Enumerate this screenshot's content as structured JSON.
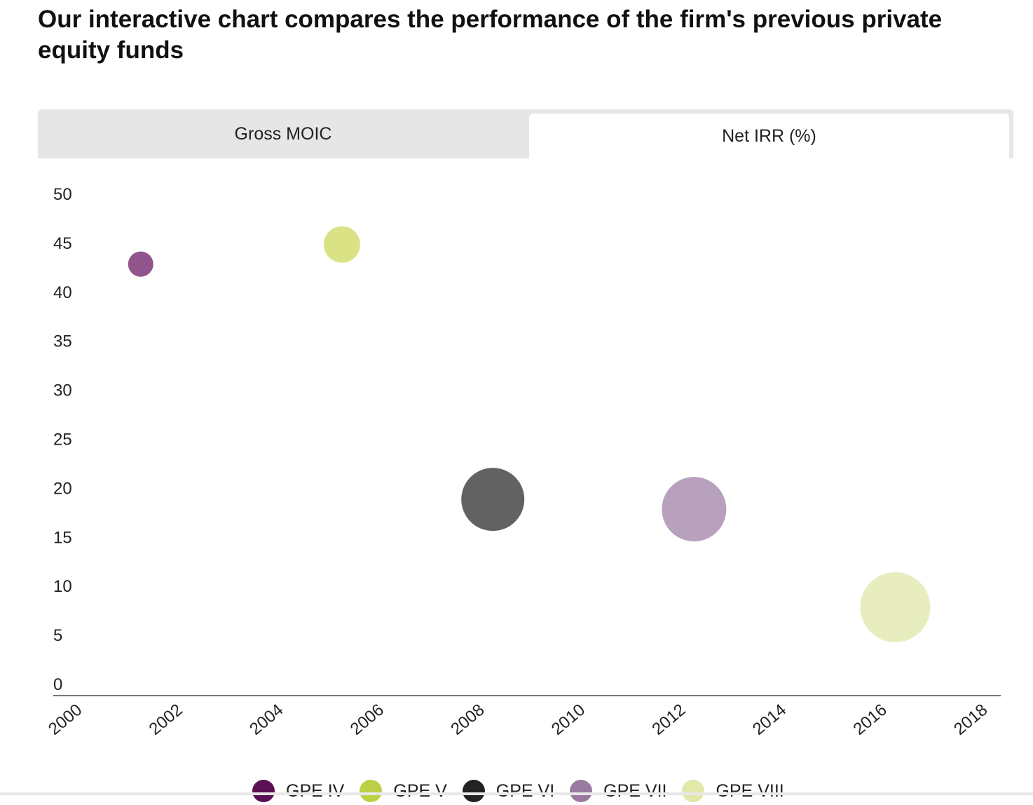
{
  "page": {
    "title": "Our interactive chart compares the performance of the firm's previous private equity funds"
  },
  "tabs": [
    {
      "label": "Gross MOIC",
      "active": false
    },
    {
      "label": "Net IRR (%)",
      "active": true
    }
  ],
  "legend": [
    {
      "label": "GPE IV",
      "color": "#5a1052"
    },
    {
      "label": "GPE V",
      "color": "#bccf45"
    },
    {
      "label": "GPE VI",
      "color": "#222222"
    },
    {
      "label": "GPE VII",
      "color": "#9a7aa0"
    },
    {
      "label": "GPE VIII",
      "color": "#e2e8aa"
    }
  ],
  "chart_data": {
    "type": "scatter",
    "title": "",
    "xlabel": "",
    "ylabel": "",
    "xlim": [
      2000,
      2018
    ],
    "ylim": [
      0,
      50
    ],
    "x_ticks": [
      "2000",
      "2002",
      "2004",
      "2006",
      "2008",
      "2010",
      "2012",
      "2014",
      "2016",
      "2018"
    ],
    "y_ticks": [
      "0",
      "5",
      "10",
      "15",
      "20",
      "25",
      "30",
      "35",
      "40",
      "45",
      "50"
    ],
    "grid": false,
    "legend_position": "bottom",
    "series": [
      {
        "name": "GPE IV",
        "x": 2001,
        "y": 42.8,
        "color": "#8f558c"
      },
      {
        "name": "GPE V",
        "x": 2005,
        "y": 44.8,
        "color": "#d9e386"
      },
      {
        "name": "GPE VI",
        "x": 2008,
        "y": 18.8,
        "color": "#626262"
      },
      {
        "name": "GPE VII",
        "x": 2012,
        "y": 17.8,
        "color": "#b8a1bd"
      },
      {
        "name": "GPE VIII",
        "x": 2016,
        "y": 7.8,
        "color": "#e8edc0"
      }
    ]
  }
}
